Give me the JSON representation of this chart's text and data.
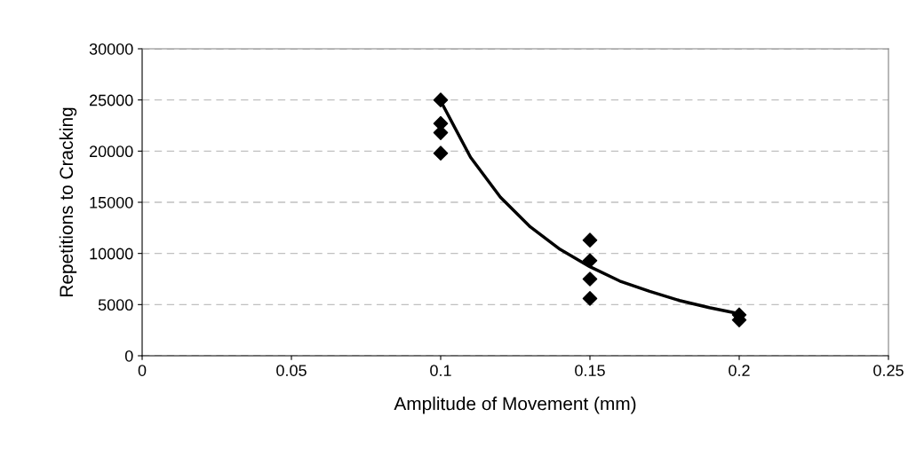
{
  "chart_data": {
    "type": "scatter",
    "xlabel": "Amplitude of Movement (mm)",
    "ylabel": "Repetitions to Cracking",
    "xlim": [
      0,
      0.25
    ],
    "xticks": [
      0,
      0.05,
      0.1,
      0.15,
      0.2,
      0.25
    ],
    "ylim": [
      0,
      30000
    ],
    "yticks": [
      0,
      5000,
      10000,
      15000,
      20000,
      25000,
      30000
    ],
    "grid": "y",
    "legend": false,
    "series": [
      {
        "type": "scatter",
        "color": "#000000",
        "marker": "diamond",
        "x": [
          0.1,
          0.1,
          0.1,
          0.1,
          0.15,
          0.15,
          0.15,
          0.15,
          0.2,
          0.2
        ],
        "values": [
          25000,
          22700,
          21800,
          19800,
          11300,
          9300,
          7500,
          5600,
          4000,
          3500
        ]
      },
      {
        "type": "line",
        "color": "#000000",
        "marker": "none",
        "line_style": "solid",
        "x": [
          0.1,
          0.11,
          0.12,
          0.13,
          0.14,
          0.15,
          0.16,
          0.17,
          0.18,
          0.19,
          0.2
        ],
        "values": [
          24900,
          19400,
          15500,
          12600,
          10400,
          8700,
          7300,
          6300,
          5400,
          4700,
          4100
        ]
      }
    ]
  }
}
